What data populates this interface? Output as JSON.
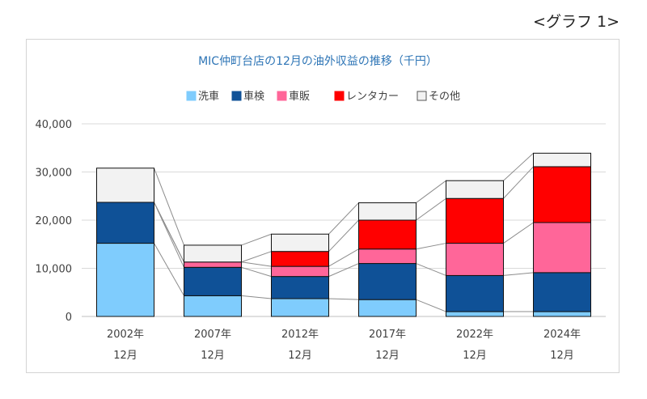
{
  "page": {
    "label": "<グラフ 1>"
  },
  "chart_data": {
    "type": "bar",
    "stacked": true,
    "title": "MIC仲町台店の12月の油外収益の推移（千円）",
    "categories": [
      {
        "year": "2002年",
        "month": "12月"
      },
      {
        "year": "2007年",
        "month": "12月"
      },
      {
        "year": "2012年",
        "month": "12月"
      },
      {
        "year": "2017年",
        "month": "12月"
      },
      {
        "year": "2022年",
        "month": "12月"
      },
      {
        "year": "2024年",
        "month": "12月"
      }
    ],
    "series": [
      {
        "name": "洗車",
        "color": "#7fccfd",
        "values": [
          15200,
          4300,
          3700,
          3500,
          1000,
          1000
        ]
      },
      {
        "name": "車検",
        "color": "#0f5197",
        "values": [
          8500,
          5900,
          4600,
          7500,
          7500,
          8100
        ]
      },
      {
        "name": "車販",
        "color": "#ff6699",
        "values": [
          0,
          1100,
          2100,
          3000,
          6700,
          10400
        ]
      },
      {
        "name": "レンタカー",
        "color": "#ff0000",
        "values": [
          0,
          0,
          3100,
          6000,
          9300,
          11600
        ]
      },
      {
        "name": "その他",
        "color": "#f2f2f2",
        "values": [
          7100,
          3500,
          3600,
          3600,
          3700,
          2800
        ]
      }
    ],
    "yaxis": {
      "min": 0,
      "max": 40000,
      "ticks": [
        "0",
        "10,000",
        "20,000",
        "30,000",
        "40,000"
      ]
    },
    "grid": true,
    "legend_position": "top",
    "series_lines": true
  }
}
